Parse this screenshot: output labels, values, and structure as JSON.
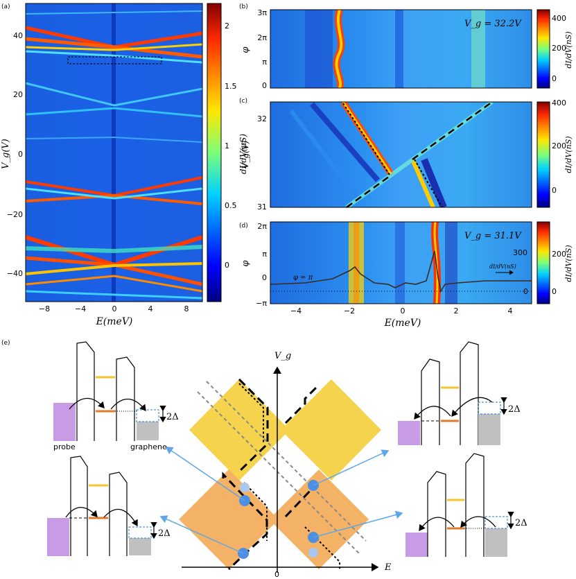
{
  "panels": {
    "a": {
      "label": "(a)",
      "xlabel": "E(meV)",
      "ylabel": "V_g(V)",
      "xticks": [
        "−8",
        "−4",
        "0",
        "4",
        "8"
      ],
      "yticks": [
        "40",
        "20",
        "0",
        "−20",
        "−40"
      ],
      "colorbar_label": "dI/dV(μS)",
      "colorbar_ticks": [
        "2",
        "1.5",
        "1",
        "0.5",
        "0"
      ]
    },
    "b": {
      "label": "(b)",
      "annotation": "V_g = 32.2V",
      "ylabel": "φ",
      "yticks": [
        "3π",
        "2π",
        "π",
        "0"
      ],
      "colorbar_label": "dI/dV(nS)",
      "colorbar_ticks": [
        "400",
        "200",
        "0"
      ]
    },
    "c": {
      "label": "(c)",
      "ylabel": "V_g(V)",
      "yticks": [
        "32",
        "31"
      ],
      "ytick_mid": "",
      "colorbar_label": "dI/dV(nS)",
      "colorbar_ticks": [
        "400",
        "200",
        "0"
      ]
    },
    "d": {
      "label": "(d)",
      "annotation": "V_g = 31.1V",
      "ylabel": "φ",
      "yticks": [
        "2π",
        "π",
        "0",
        "−π"
      ],
      "phi_label": "φ = π",
      "right_tick_300": "300",
      "right_tick_0": "0",
      "arrow_label": "dI/dV(nS)",
      "xlabel": "E(meV)",
      "xticks": [
        "−4",
        "−2",
        "0",
        "2",
        "4"
      ],
      "colorbar_label": "dI/dV(nS)",
      "colorbar_ticks": [
        "200",
        "0"
      ]
    },
    "e": {
      "label": "(e)",
      "axis_y": "V_g",
      "axis_x": "E",
      "origin": "0",
      "probe_label": "probe",
      "graphene_label": "graphene",
      "gap_label": "2Δ"
    }
  },
  "colors": {
    "probe": "#c89be6",
    "graphene": "#c0c0c0",
    "yellow_level": "#f2c531",
    "orange_level": "#e07a2a",
    "yellow_diamond": "#f5d34d",
    "orange_diamond": "#f4b266",
    "dot": "#4d8fe0",
    "arrow": "#5ea6e8"
  }
}
